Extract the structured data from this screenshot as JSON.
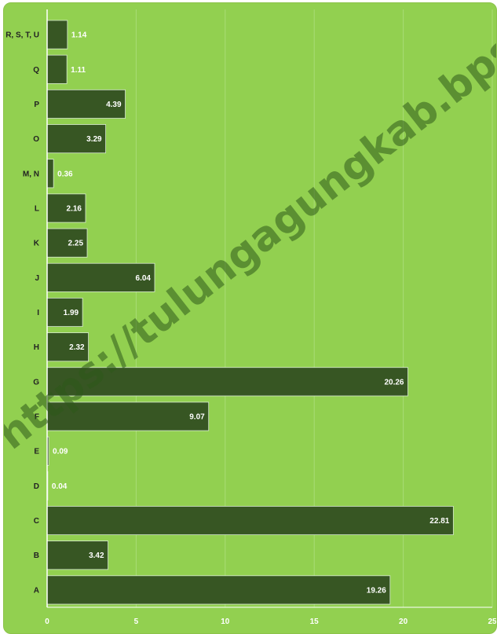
{
  "chart_data": {
    "type": "bar",
    "orientation": "horizontal",
    "categories": [
      "A",
      "B",
      "C",
      "D",
      "E",
      "F",
      "G",
      "H",
      "I",
      "J",
      "K",
      "L",
      "M, N",
      "O",
      "P",
      "Q",
      "R, S, T, U"
    ],
    "values": [
      19.26,
      3.42,
      22.81,
      0.04,
      0.09,
      9.07,
      20.26,
      2.32,
      1.99,
      6.04,
      2.25,
      2.16,
      0.36,
      3.29,
      4.39,
      1.11,
      1.14
    ],
    "value_labels": [
      "19.26",
      "3.42",
      "22.81",
      "0.04",
      "0.09",
      "9.07",
      "20.26",
      "2.32",
      "1.99",
      "6.04",
      "2.25",
      "2.16",
      "0.36",
      "3.29",
      "4.39",
      "1.11",
      "1.14"
    ],
    "xlim": [
      0,
      25
    ],
    "xticks": [
      0,
      5,
      10,
      15,
      20,
      25
    ],
    "xtick_labels": [
      "0",
      "5",
      "10",
      "15",
      "20",
      "25"
    ],
    "title": "",
    "xlabel": "",
    "ylabel": "",
    "grid": "vertical",
    "legend": "none",
    "colors": {
      "background": "#92d050",
      "bar": "#375623",
      "bar_border": "#d9ead3",
      "gridline": "#a9dc76",
      "data_label": "#ffffff",
      "category_label": "#222222",
      "tick_label": "#ffffff"
    }
  },
  "watermark": "https://tulungagungkab.bps.go.id"
}
